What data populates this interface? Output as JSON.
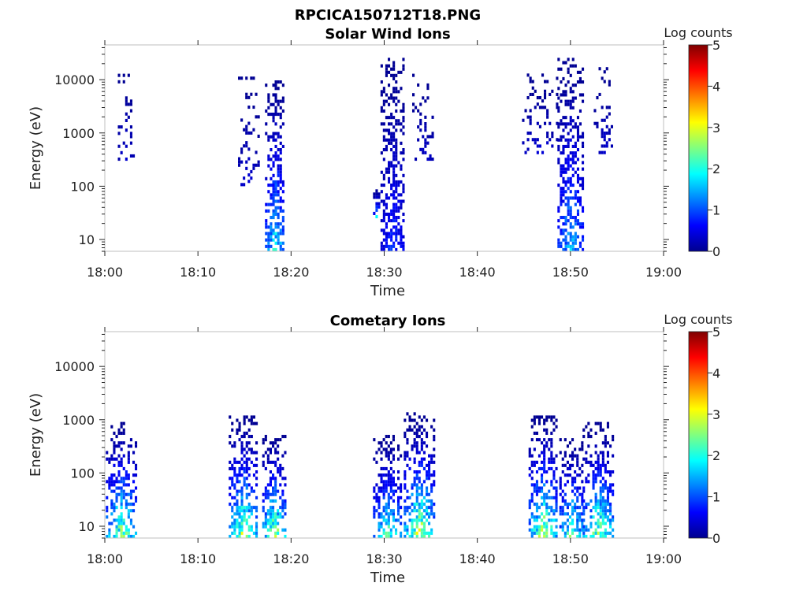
{
  "figure_title": "RPCICA150712T18.PNG",
  "colormap": [
    "#00008f",
    "#0000ff",
    "#0080ff",
    "#00ffff",
    "#80ff80",
    "#ffff00",
    "#ff8000",
    "#ff0000",
    "#800000"
  ],
  "chart_data": [
    {
      "type": "heatmap",
      "title": "Solar Wind Ions",
      "xlabel": "Time",
      "ylabel": "Energy (eV)",
      "x_ticks": [
        "18:00",
        "18:10",
        "18:20",
        "18:30",
        "18:40",
        "18:50",
        "19:00"
      ],
      "x_range_minutes": [
        0,
        60
      ],
      "y_ticks": [
        "10",
        "100",
        "1000",
        "10000"
      ],
      "y_scale": "log",
      "y_range_eV": [
        6,
        45000
      ],
      "colorbar": {
        "label": "Log counts",
        "ticks": [
          "0",
          "1",
          "2",
          "3",
          "4",
          "5"
        ],
        "range": [
          0,
          5
        ]
      },
      "bursts": [
        {
          "t_start": 1.4,
          "t_end": 3.0,
          "e_low": 300,
          "e_high": 13000,
          "peak_log": 0.5,
          "density": 0.35
        },
        {
          "t_start": 14.3,
          "t_end": 16.5,
          "e_low": 100,
          "e_high": 10000,
          "peak_log": 0.5,
          "density": 0.3
        },
        {
          "t_start": 17.2,
          "t_end": 19.2,
          "e_low": 6,
          "e_high": 11000,
          "peak_log": 2.2,
          "density": 0.75
        },
        {
          "t_start": 28.8,
          "t_end": 29.4,
          "e_low": 25,
          "e_high": 90,
          "peak_log": 2.0,
          "density": 0.8
        },
        {
          "t_start": 29.6,
          "t_end": 32.2,
          "e_low": 6,
          "e_high": 24000,
          "peak_log": 1.0,
          "density": 0.7
        },
        {
          "t_start": 33.0,
          "t_end": 35.3,
          "e_low": 300,
          "e_high": 14000,
          "peak_log": 0.4,
          "density": 0.3
        },
        {
          "t_start": 44.8,
          "t_end": 48.5,
          "e_low": 400,
          "e_high": 12000,
          "peak_log": 0.5,
          "density": 0.25
        },
        {
          "t_start": 48.6,
          "t_end": 51.2,
          "e_low": 6,
          "e_high": 24000,
          "peak_log": 1.8,
          "density": 0.7
        },
        {
          "t_start": 52.5,
          "t_end": 54.5,
          "e_low": 400,
          "e_high": 16000,
          "peak_log": 0.5,
          "density": 0.35
        }
      ]
    },
    {
      "type": "heatmap",
      "title": "Cometary Ions",
      "xlabel": "Time",
      "ylabel": "Energy (eV)",
      "x_ticks": [
        "18:00",
        "18:10",
        "18:20",
        "18:30",
        "18:40",
        "18:50",
        "19:00"
      ],
      "x_range_minutes": [
        0,
        60
      ],
      "y_ticks": [
        "10",
        "100",
        "1000",
        "10000"
      ],
      "y_scale": "log",
      "y_range_eV": [
        6,
        45000
      ],
      "colorbar": {
        "label": "Log counts",
        "ticks": [
          "0",
          "1",
          "2",
          "3",
          "4",
          "5"
        ],
        "range": [
          0,
          5
        ]
      },
      "bursts": [
        {
          "t_start": 0.1,
          "t_end": 3.3,
          "e_low": 6,
          "e_high": 900,
          "peak_log": 3.0,
          "density": 0.7
        },
        {
          "t_start": 13.3,
          "t_end": 16.2,
          "e_low": 6,
          "e_high": 1100,
          "peak_log": 3.1,
          "density": 0.7
        },
        {
          "t_start": 16.9,
          "t_end": 19.3,
          "e_low": 6,
          "e_high": 500,
          "peak_log": 3.3,
          "density": 0.75
        },
        {
          "t_start": 28.8,
          "t_end": 31.8,
          "e_low": 6,
          "e_high": 500,
          "peak_log": 2.6,
          "density": 0.75
        },
        {
          "t_start": 32.1,
          "t_end": 35.3,
          "e_low": 6,
          "e_high": 1200,
          "peak_log": 3.4,
          "density": 0.75
        },
        {
          "t_start": 45.5,
          "t_end": 48.6,
          "e_low": 6,
          "e_high": 1100,
          "peak_log": 3.2,
          "density": 0.75
        },
        {
          "t_start": 48.8,
          "t_end": 51.3,
          "e_low": 6,
          "e_high": 400,
          "peak_log": 2.8,
          "density": 0.7
        },
        {
          "t_start": 51.3,
          "t_end": 54.6,
          "e_low": 6,
          "e_high": 800,
          "peak_log": 3.0,
          "density": 0.75
        }
      ]
    }
  ]
}
